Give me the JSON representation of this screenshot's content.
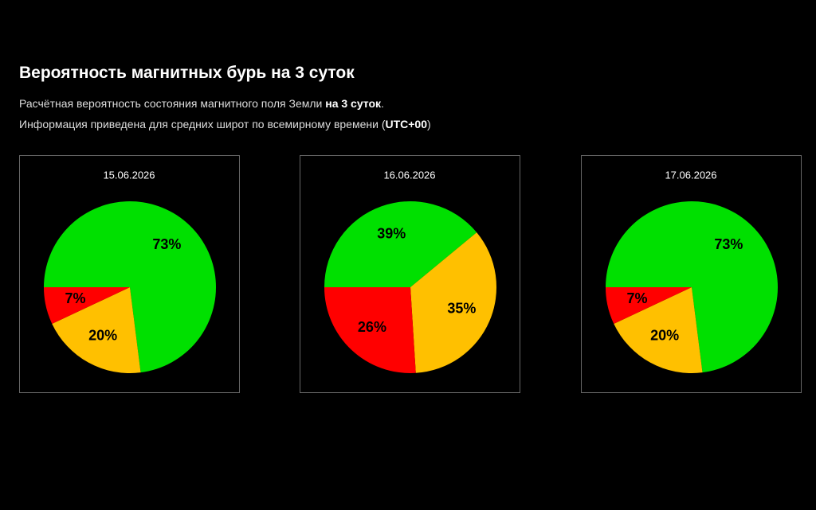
{
  "header": {
    "title": "Вероятность магнитных бурь на 3 суток",
    "line1": [
      "Расчётная вероятность состояния магнитного поля Земли",
      "на 3 суток",
      "."
    ],
    "line2": [
      "Информация приведена для средних широт по всемирному времени (",
      "UTC+00",
      ")"
    ]
  },
  "chart_data": [
    {
      "type": "pie",
      "title": "15.06.2026",
      "values": [
        73,
        20,
        7
      ],
      "value_labels": [
        "73%",
        "20%",
        "7%"
      ],
      "colors": [
        "#00e000",
        "#ffc000",
        "#ff0000"
      ]
    },
    {
      "type": "pie",
      "title": "16.06.2026",
      "values": [
        39,
        35,
        26
      ],
      "value_labels": [
        "39%",
        "35%",
        "26%"
      ],
      "colors": [
        "#00e000",
        "#ffc000",
        "#ff0000"
      ]
    },
    {
      "type": "pie",
      "title": "17.06.2026",
      "values": [
        73,
        20,
        7
      ],
      "value_labels": [
        "73%",
        "20%",
        "7%"
      ],
      "colors": [
        "#00e000",
        "#ffc000",
        "#ff0000"
      ]
    }
  ]
}
